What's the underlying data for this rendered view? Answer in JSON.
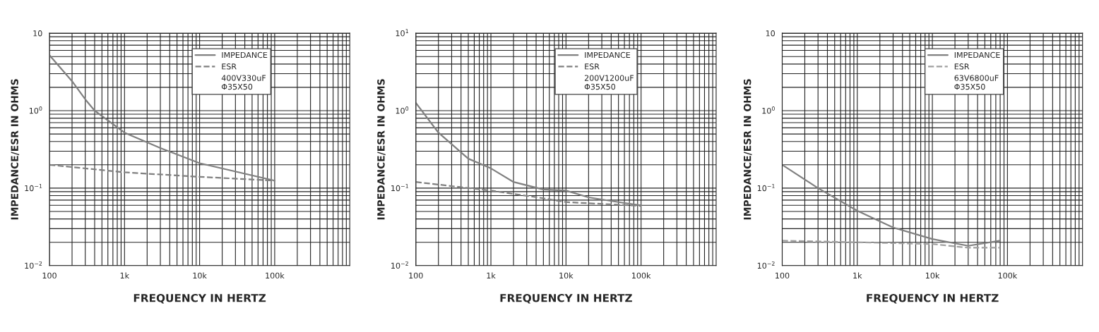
{
  "chart_data": [
    {
      "type": "line",
      "xlabel": "FREQUENCY IN HERTZ",
      "ylabel": "IMPEDANCE/ESR IN OHMS",
      "log": "xy",
      "grid": true,
      "legend": "top right",
      "xlim": [
        100,
        1000000
      ],
      "xticks": [
        {
          "value": 100,
          "label": "100"
        },
        {
          "value": 1000,
          "label": "1k"
        },
        {
          "value": 10000,
          "label": "10k"
        },
        {
          "value": 100000,
          "label": "100k"
        }
      ],
      "ylim": [
        0.01,
        10
      ],
      "yticks": [
        {
          "value": 0.01,
          "label": "10$^{−2}$"
        },
        {
          "value": 0.1,
          "label": "10$^{−1}$"
        },
        {
          "value": 1,
          "label": "10$^{0}$"
        },
        {
          "value": 10,
          "label": "10"
        }
      ],
      "annotations": [
        "400V330uF\nΦ35X50"
      ],
      "series": [
        {
          "name": "IMPEDANCE",
          "color": "#808080",
          "line_style": "solid",
          "x": [
            100,
            200,
            300,
            400,
            1000,
            3000,
            10000,
            100000
          ],
          "values": [
            5.2,
            2.4,
            1.4,
            1.0,
            0.52,
            0.33,
            0.21,
            0.125
          ]
        },
        {
          "name": "ESR",
          "color": "#808080",
          "line_style": "dashed",
          "x": [
            100,
            1000,
            10000,
            100000
          ],
          "values": [
            0.2,
            0.16,
            0.14,
            0.125
          ]
        }
      ]
    },
    {
      "type": "line",
      "xlabel": "FREQUENCY IN HERTZ",
      "ylabel": "IMPEDANCE/ESR IN OHMS",
      "log": "xy",
      "grid": true,
      "legend": "top right",
      "xlim": [
        100,
        1000000
      ],
      "xticks": [
        {
          "value": 100,
          "label": "100"
        },
        {
          "value": 1000,
          "label": "1k"
        },
        {
          "value": 10000,
          "label": "10k"
        },
        {
          "value": 100000,
          "label": "100k"
        }
      ],
      "ylim": [
        0.01,
        10
      ],
      "yticks": [
        {
          "value": 0.01,
          "label": "10$^{−2}$"
        },
        {
          "value": 0.1,
          "label": "10$^{−1}$"
        },
        {
          "value": 1,
          "label": "10$^{0}$"
        },
        {
          "value": 10,
          "label": "10$^{1}$"
        }
      ],
      "annotations": [
        "200V1200uF\nΦ35X50"
      ],
      "series": [
        {
          "name": "IMPEDANCE",
          "color": "#808080",
          "line_style": "solid",
          "x": [
            100,
            200,
            500,
            1000,
            2000,
            5000,
            10000,
            20000,
            50000,
            100000
          ],
          "values": [
            1.26,
            0.52,
            0.24,
            0.18,
            0.12,
            0.096,
            0.093,
            0.076,
            0.066,
            0.06
          ]
        },
        {
          "name": "ESR",
          "color": "#808080",
          "line_style": "dashed",
          "x": [
            100,
            1000,
            5000,
            10000,
            100000
          ],
          "values": [
            0.12,
            0.093,
            0.074,
            0.066,
            0.059
          ]
        }
      ]
    },
    {
      "type": "line",
      "xlabel": "FREQUENCY IN HERTZ",
      "ylabel": "IMPEDANCE/ESR IN OHMS",
      "log": "xy",
      "grid": true,
      "legend": "top right",
      "xlim": [
        100,
        1000000
      ],
      "xticks": [
        {
          "value": 100,
          "label": "100"
        },
        {
          "value": 1000,
          "label": "1k"
        },
        {
          "value": 10000,
          "label": "10k"
        },
        {
          "value": 100000,
          "label": "100k"
        }
      ],
      "ylim": [
        0.01,
        10
      ],
      "yticks": [
        {
          "value": 0.01,
          "label": "10$^{−2}$"
        },
        {
          "value": 0.1,
          "label": "10$^{−1}$"
        },
        {
          "value": 1,
          "label": "10$^{0}$"
        },
        {
          "value": 10,
          "label": "10"
        }
      ],
      "annotations": [
        "63V6800uF\nΦ35X50"
      ],
      "series": [
        {
          "name": "IMPEDANCE",
          "color": "#808080",
          "line_style": "solid",
          "x": [
            100,
            300,
            1000,
            3000,
            10000,
            30000,
            80000
          ],
          "values": [
            0.2,
            0.1,
            0.051,
            0.031,
            0.022,
            0.018,
            0.021
          ]
        },
        {
          "name": "ESR",
          "color": "#a0a0a0",
          "line_style": "dashed",
          "x": [
            100,
            1000,
            10000,
            30000,
            80000
          ],
          "values": [
            0.021,
            0.02,
            0.019,
            0.017,
            0.017
          ]
        }
      ]
    }
  ]
}
